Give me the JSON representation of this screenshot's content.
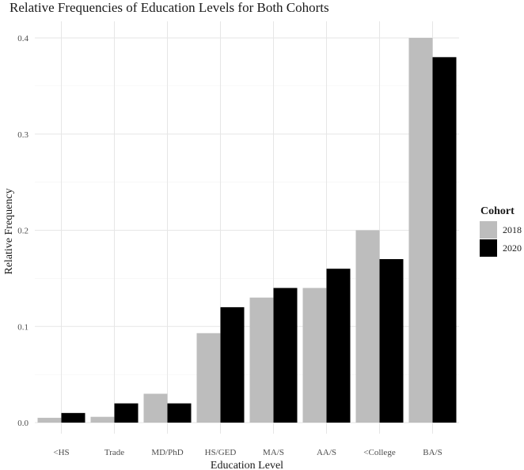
{
  "chart_data": {
    "type": "bar",
    "title": "Relative Frequencies of Education Levels for Both Cohorts",
    "xlabel": "Education Level",
    "ylabel": "Relative Frequency",
    "categories": [
      "<HS",
      "Trade",
      "MD/PhD",
      "HS/GED",
      "MA/S",
      "AA/S",
      "<College",
      "BA/S"
    ],
    "series": [
      {
        "name": "2018",
        "color": "#bdbdbd",
        "values": [
          0.005,
          0.006,
          0.03,
          0.093,
          0.13,
          0.14,
          0.2,
          0.4
        ]
      },
      {
        "name": "2020",
        "color": "#000000",
        "values": [
          0.01,
          0.02,
          0.02,
          0.12,
          0.14,
          0.16,
          0.17,
          0.38
        ]
      }
    ],
    "yticks": [
      0.0,
      0.1,
      0.2,
      0.3,
      0.4
    ],
    "ytick_labels": [
      "0.0",
      "0.1",
      "0.2",
      "0.3",
      "0.4"
    ],
    "ylim": [
      0,
      0.41
    ],
    "grid": true,
    "legend": {
      "title": "Cohort",
      "position": "right"
    }
  }
}
